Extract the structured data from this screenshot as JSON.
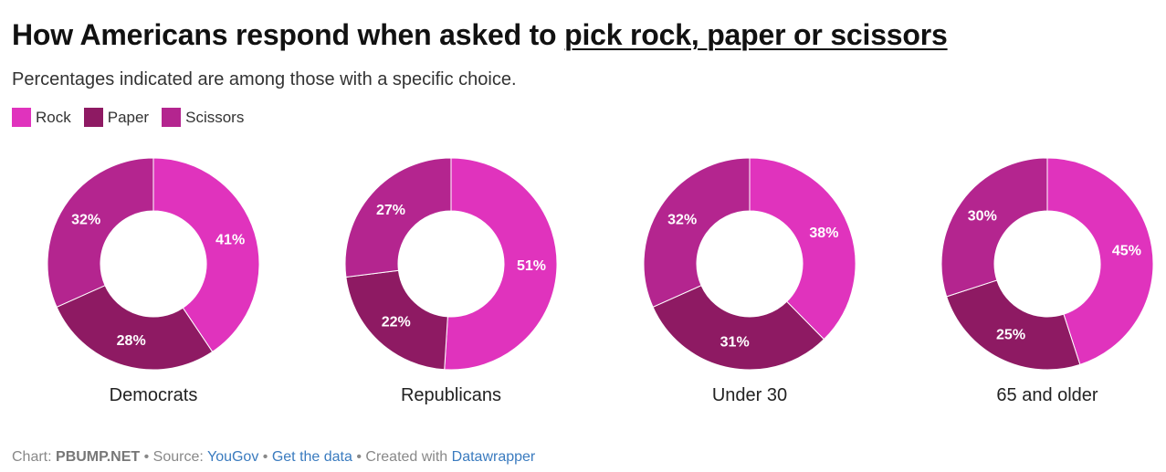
{
  "header": {
    "title_prefix": "How Americans respond when asked to ",
    "title_link": "pick rock, paper or scissors",
    "subtitle": "Percentages indicated are among those with a specific choice."
  },
  "colors": {
    "rock": "#e033bd",
    "paper": "#8e1a63",
    "scissors": "#b4258f"
  },
  "legend": [
    {
      "label": "Rock",
      "color": "#e033bd"
    },
    {
      "label": "Paper",
      "color": "#8e1a63"
    },
    {
      "label": "Scissors",
      "color": "#b4258f"
    }
  ],
  "chart_data": {
    "type": "donut",
    "series_names": [
      "Rock",
      "Paper",
      "Scissors"
    ],
    "groups": [
      {
        "name": "Democrats",
        "values": [
          41,
          28,
          32
        ],
        "labels": [
          "41%",
          "28%",
          "32%"
        ]
      },
      {
        "name": "Republicans",
        "values": [
          51,
          22,
          27
        ],
        "labels": [
          "51%",
          "22%",
          "27%"
        ]
      },
      {
        "name": "Under 30",
        "values": [
          38,
          31,
          32
        ],
        "labels": [
          "38%",
          "31%",
          "32%"
        ]
      },
      {
        "name": "65 and older",
        "values": [
          45,
          25,
          30
        ],
        "labels": [
          "45%",
          "25%",
          "30%"
        ]
      }
    ]
  },
  "footer": {
    "chart_prefix": "Chart: ",
    "chart_author": "PBUMP.NET",
    "source_prefix": " • Source: ",
    "source_link": "YouGov",
    "sep": " • ",
    "data_link": "Get the data",
    "created_prefix": " • Created with ",
    "created_link": "Datawrapper"
  }
}
